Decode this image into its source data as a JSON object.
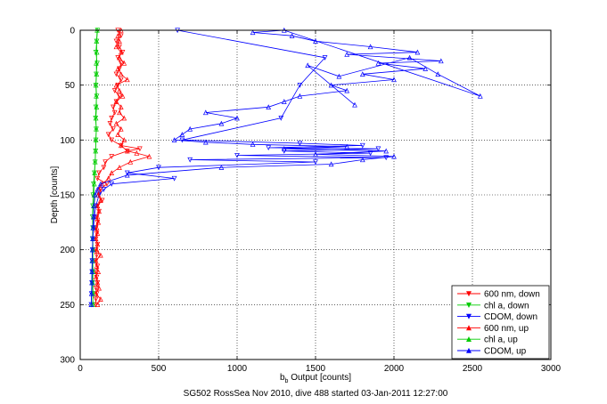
{
  "chart_data": {
    "type": "line",
    "title": "",
    "xlabel": "b",
    "xlabel_subscript": "b",
    "xlabel_suffix": " Output [counts]",
    "ylabel": "Depth [counts]",
    "footer": "SG502 RossSea Nov 2010, dive 488 started 03-Jan-2011 12:27:00",
    "xlim": [
      0,
      3000
    ],
    "ylim": [
      300,
      0
    ],
    "y_reversed": true,
    "grid": true,
    "grid_style": "dotted",
    "x_ticks": [
      0,
      500,
      1000,
      1500,
      2000,
      2500,
      3000
    ],
    "y_ticks": [
      0,
      50,
      100,
      150,
      200,
      250,
      300
    ],
    "legend_position": "bottom-right",
    "series": [
      {
        "name": "600 nm, down",
        "color": "#ff0000",
        "marker": "triangle-down",
        "points": [
          [
            240,
            0
          ],
          [
            260,
            5
          ],
          [
            230,
            10
          ],
          [
            250,
            15
          ],
          [
            270,
            20
          ],
          [
            240,
            25
          ],
          [
            260,
            30
          ],
          [
            250,
            35
          ],
          [
            230,
            40
          ],
          [
            260,
            45
          ],
          [
            240,
            50
          ],
          [
            220,
            55
          ],
          [
            250,
            60
          ],
          [
            230,
            65
          ],
          [
            210,
            70
          ],
          [
            220,
            75
          ],
          [
            200,
            80
          ],
          [
            190,
            85
          ],
          [
            210,
            90
          ],
          [
            180,
            95
          ],
          [
            200,
            100
          ],
          [
            260,
            105
          ],
          [
            380,
            108
          ],
          [
            300,
            110
          ],
          [
            200,
            115
          ],
          [
            160,
            120
          ],
          [
            150,
            125
          ],
          [
            120,
            130
          ],
          [
            110,
            135
          ],
          [
            170,
            140
          ],
          [
            130,
            145
          ],
          [
            120,
            150
          ],
          [
            140,
            155
          ],
          [
            110,
            160
          ],
          [
            120,
            165
          ],
          [
            105,
            170
          ],
          [
            110,
            175
          ],
          [
            100,
            180
          ],
          [
            105,
            185
          ],
          [
            100,
            190
          ],
          [
            110,
            195
          ],
          [
            100,
            200
          ],
          [
            105,
            205
          ],
          [
            100,
            210
          ],
          [
            110,
            215
          ],
          [
            100,
            220
          ],
          [
            105,
            225
          ],
          [
            110,
            230
          ],
          [
            100,
            235
          ],
          [
            105,
            240
          ],
          [
            100,
            245
          ],
          [
            100,
            250
          ]
        ]
      },
      {
        "name": "chl a, down",
        "color": "#00cc00",
        "marker": "triangle-down",
        "points": [
          [
            110,
            0
          ],
          [
            105,
            10
          ],
          [
            100,
            20
          ],
          [
            108,
            30
          ],
          [
            102,
            40
          ],
          [
            100,
            50
          ],
          [
            105,
            60
          ],
          [
            100,
            70
          ],
          [
            98,
            80
          ],
          [
            102,
            90
          ],
          [
            100,
            100
          ],
          [
            98,
            110
          ],
          [
            95,
            120
          ],
          [
            90,
            130
          ],
          [
            85,
            140
          ],
          [
            82,
            150
          ],
          [
            80,
            160
          ],
          [
            78,
            170
          ],
          [
            80,
            180
          ],
          [
            78,
            190
          ],
          [
            80,
            200
          ],
          [
            78,
            210
          ],
          [
            80,
            220
          ],
          [
            78,
            230
          ],
          [
            80,
            240
          ],
          [
            80,
            250
          ]
        ]
      },
      {
        "name": "CDOM, down",
        "color": "#0000ff",
        "marker": "triangle-down",
        "points": [
          [
            620,
            0
          ],
          [
            1560,
            25
          ],
          [
            1400,
            50
          ],
          [
            1280,
            80
          ],
          [
            650,
            100
          ],
          [
            1400,
            103
          ],
          [
            1800,
            105
          ],
          [
            1200,
            107
          ],
          [
            1900,
            108
          ],
          [
            1300,
            110
          ],
          [
            1850,
            112
          ],
          [
            1000,
            114
          ],
          [
            1950,
            116
          ],
          [
            700,
            118
          ],
          [
            1500,
            120
          ],
          [
            500,
            125
          ],
          [
            300,
            130
          ],
          [
            600,
            135
          ],
          [
            200,
            140
          ],
          [
            150,
            145
          ],
          [
            120,
            150
          ],
          [
            100,
            160
          ],
          [
            90,
            170
          ],
          [
            85,
            180
          ],
          [
            80,
            190
          ],
          [
            78,
            200
          ],
          [
            76,
            210
          ],
          [
            75,
            220
          ],
          [
            74,
            230
          ],
          [
            72,
            240
          ],
          [
            70,
            250
          ]
        ]
      },
      {
        "name": "600 nm, up",
        "color": "#ff0000",
        "marker": "triangle-up",
        "points": [
          [
            110,
            250
          ],
          [
            130,
            245
          ],
          [
            100,
            240
          ],
          [
            120,
            235
          ],
          [
            110,
            230
          ],
          [
            100,
            225
          ],
          [
            115,
            220
          ],
          [
            105,
            215
          ],
          [
            100,
            210
          ],
          [
            130,
            205
          ],
          [
            105,
            200
          ],
          [
            110,
            195
          ],
          [
            100,
            190
          ],
          [
            110,
            185
          ],
          [
            105,
            180
          ],
          [
            115,
            175
          ],
          [
            110,
            170
          ],
          [
            120,
            165
          ],
          [
            110,
            160
          ],
          [
            130,
            155
          ],
          [
            115,
            150
          ],
          [
            120,
            145
          ],
          [
            140,
            140
          ],
          [
            180,
            135
          ],
          [
            200,
            130
          ],
          [
            250,
            125
          ],
          [
            320,
            120
          ],
          [
            440,
            115
          ],
          [
            360,
            112
          ],
          [
            300,
            110
          ],
          [
            260,
            105
          ],
          [
            280,
            100
          ],
          [
            240,
            95
          ],
          [
            260,
            90
          ],
          [
            230,
            85
          ],
          [
            280,
            80
          ],
          [
            250,
            75
          ],
          [
            260,
            70
          ],
          [
            230,
            65
          ],
          [
            270,
            60
          ],
          [
            250,
            55
          ],
          [
            230,
            50
          ],
          [
            300,
            45
          ],
          [
            260,
            40
          ],
          [
            240,
            35
          ],
          [
            280,
            30
          ],
          [
            250,
            25
          ],
          [
            260,
            20
          ],
          [
            230,
            15
          ],
          [
            250,
            10
          ],
          [
            240,
            5
          ],
          [
            260,
            0
          ]
        ]
      },
      {
        "name": "chl a, up",
        "color": "#00cc00",
        "marker": "triangle-up",
        "points": [
          [
            80,
            250
          ],
          [
            82,
            240
          ],
          [
            80,
            230
          ],
          [
            82,
            220
          ],
          [
            80,
            210
          ],
          [
            82,
            200
          ],
          [
            80,
            190
          ],
          [
            82,
            180
          ],
          [
            84,
            170
          ],
          [
            85,
            160
          ],
          [
            88,
            150
          ],
          [
            90,
            140
          ],
          [
            92,
            130
          ],
          [
            95,
            120
          ],
          [
            98,
            110
          ],
          [
            100,
            100
          ],
          [
            102,
            90
          ],
          [
            100,
            80
          ],
          [
            104,
            70
          ],
          [
            102,
            60
          ],
          [
            100,
            50
          ],
          [
            104,
            40
          ],
          [
            102,
            30
          ],
          [
            106,
            20
          ],
          [
            104,
            10
          ],
          [
            108,
            0
          ]
        ]
      },
      {
        "name": "CDOM, up",
        "color": "#0000ff",
        "marker": "triangle-up",
        "points": [
          [
            70,
            250
          ],
          [
            72,
            240
          ],
          [
            74,
            230
          ],
          [
            75,
            220
          ],
          [
            76,
            210
          ],
          [
            78,
            200
          ],
          [
            80,
            190
          ],
          [
            82,
            180
          ],
          [
            85,
            170
          ],
          [
            88,
            160
          ],
          [
            95,
            150
          ],
          [
            110,
            145
          ],
          [
            130,
            140
          ],
          [
            300,
            132
          ],
          [
            900,
            125
          ],
          [
            1600,
            122
          ],
          [
            1800,
            118
          ],
          [
            2000,
            115
          ],
          [
            1500,
            113
          ],
          [
            1950,
            110
          ],
          [
            1300,
            108
          ],
          [
            1700,
            106
          ],
          [
            1100,
            104
          ],
          [
            800,
            102
          ],
          [
            600,
            100
          ],
          [
            650,
            95
          ],
          [
            700,
            90
          ],
          [
            900,
            85
          ],
          [
            1000,
            80
          ],
          [
            800,
            75
          ],
          [
            1200,
            70
          ],
          [
            1300,
            65
          ],
          [
            1400,
            60
          ],
          [
            1700,
            55
          ],
          [
            1600,
            50
          ],
          [
            2000,
            45
          ],
          [
            1800,
            40
          ],
          [
            2200,
            35
          ],
          [
            1900,
            30
          ],
          [
            2300,
            28
          ],
          [
            1700,
            22
          ],
          [
            2150,
            20
          ],
          [
            1850,
            15
          ],
          [
            1500,
            10
          ],
          [
            1350,
            5
          ],
          [
            1100,
            2
          ],
          [
            1300,
            0
          ],
          [
            2550,
            60
          ],
          [
            2280,
            40
          ],
          [
            2100,
            25
          ],
          [
            1650,
            42
          ],
          [
            1450,
            32
          ],
          [
            1750,
            68
          ]
        ]
      }
    ]
  }
}
